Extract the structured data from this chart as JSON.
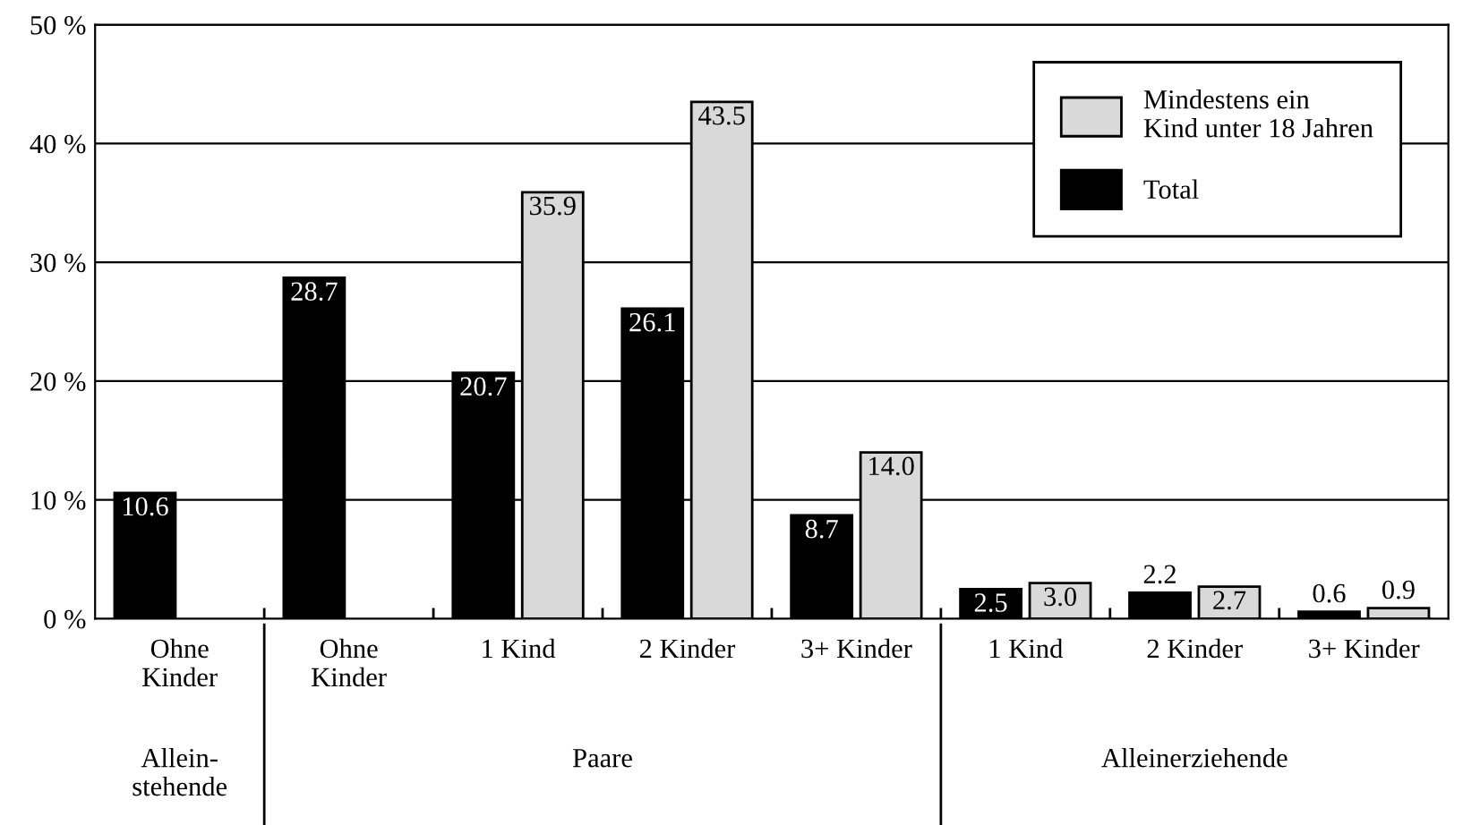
{
  "chart_data": {
    "type": "bar",
    "categories": [
      "Ohne\nKinder",
      "Ohne\nKinder",
      "1 Kind",
      "2 Kinder",
      "3+ Kinder",
      "1 Kind",
      "2 Kinder",
      "3+ Kinder"
    ],
    "series": [
      {
        "name": "Total",
        "color": "#000000",
        "values": [
          10.6,
          28.7,
          20.7,
          26.1,
          8.7,
          2.5,
          2.2,
          0.6
        ],
        "value_labels": [
          "10.6",
          "28.7",
          "20.7",
          "26.1",
          "8.7",
          "2.5",
          "2.2",
          "0.6"
        ]
      },
      {
        "name": "Mindestens ein\nKind unter 18 Jahren",
        "color": "#d9d9d9",
        "values": [
          null,
          null,
          35.9,
          43.5,
          14.0,
          3.0,
          2.7,
          0.9
        ],
        "value_labels": [
          null,
          null,
          "35.9",
          "43.5",
          "14.0",
          "3.0",
          "2.7",
          "0.9"
        ]
      }
    ],
    "annotations": [
      "Allein-\nstehende",
      "Paare",
      "Alleinerziehende"
    ],
    "ylim": [
      0,
      50
    ],
    "yticks": [
      {
        "value": 0,
        "label": "0 %"
      },
      {
        "value": 10,
        "label": "10 %"
      },
      {
        "value": 20,
        "label": "20 %"
      },
      {
        "value": 30,
        "label": "30 %"
      },
      {
        "value": 40,
        "label": "40 %"
      },
      {
        "value": 50,
        "label": "50 %"
      }
    ],
    "grid": "y",
    "legend": "top right"
  }
}
